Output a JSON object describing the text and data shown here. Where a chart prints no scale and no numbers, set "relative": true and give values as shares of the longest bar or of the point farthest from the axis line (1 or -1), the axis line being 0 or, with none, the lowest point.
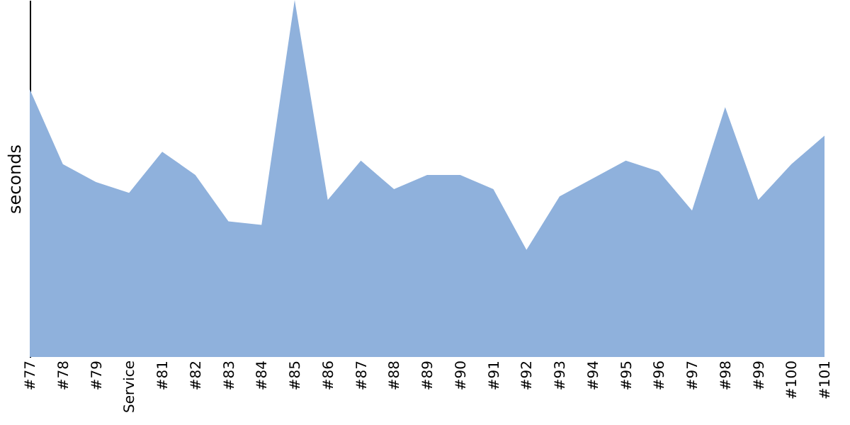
{
  "chart_data": {
    "type": "area",
    "relative": true,
    "ylabel": "seconds",
    "categories": [
      "#77",
      "#78",
      "#79",
      "Service",
      "#81",
      "#82",
      "#83",
      "#84",
      "#85",
      "#86",
      "#87",
      "#88",
      "#89",
      "#90",
      "#91",
      "#92",
      "#93",
      "#94",
      "#95",
      "#96",
      "#97",
      "#98",
      "#99",
      "#100",
      "#101"
    ],
    "series": [
      {
        "color": "#8fb1dc",
        "values": [
          0.75,
          0.54,
          0.49,
          0.46,
          0.575,
          0.51,
          0.38,
          0.37,
          1,
          0.44,
          0.55,
          0.47,
          0.51,
          0.51,
          0.47,
          0.3,
          0.45,
          0.5,
          0.55,
          0.52,
          0.41,
          0.7,
          0.44,
          0.54,
          0.62
        ]
      }
    ]
  }
}
